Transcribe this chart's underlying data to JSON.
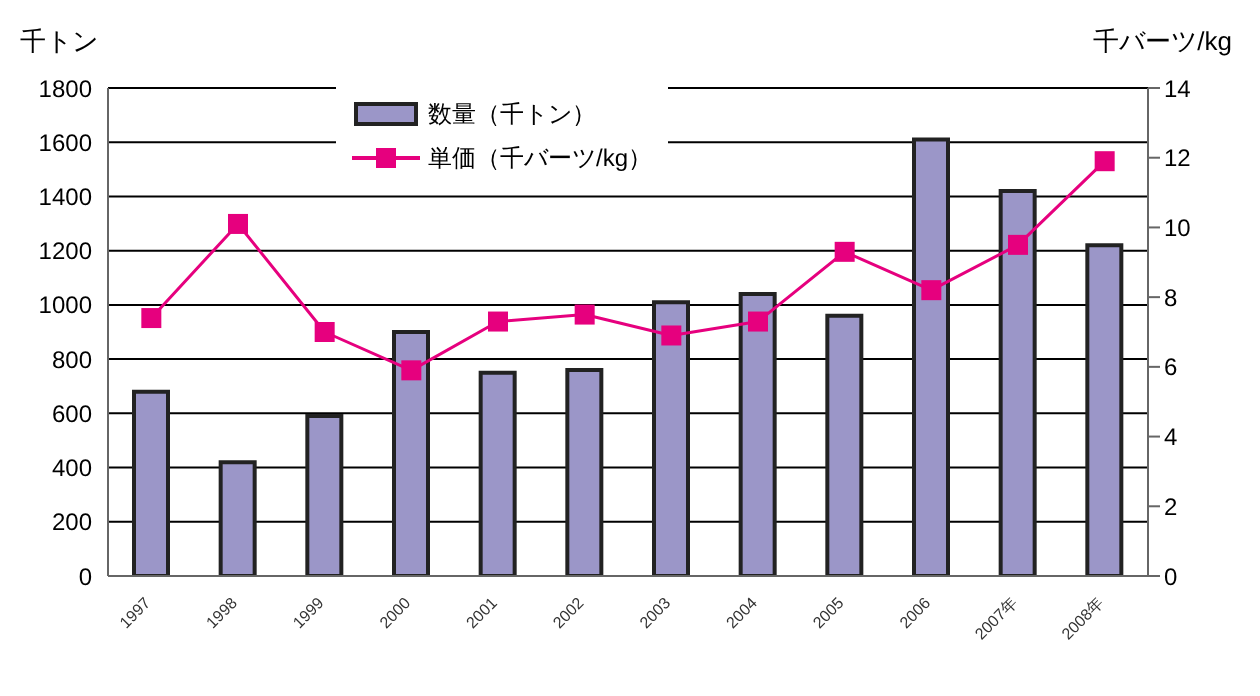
{
  "chart_data": {
    "type": "bar",
    "ylabel": "千トン",
    "y2label": "千バーツ/kg",
    "categories": [
      "1997",
      "1998",
      "1999",
      "2000",
      "2001",
      "2002",
      "2003",
      "2004",
      "2005",
      "2006",
      "2007年",
      "2008年"
    ],
    "series": [
      {
        "name": "数量（千トン）",
        "color": "#9b96c8",
        "values": [
          680,
          420,
          590,
          900,
          750,
          760,
          1010,
          1040,
          960,
          1610,
          1420,
          1220
        ]
      },
      {
        "name": "単価（千バーツ/kg）",
        "type": "line",
        "axis": "y2",
        "color": "#e6007e",
        "values": [
          7.4,
          10.1,
          7.0,
          5.9,
          7.3,
          7.5,
          6.9,
          7.3,
          9.3,
          8.2,
          9.5,
          11.9
        ]
      }
    ],
    "ylim": [
      0,
      1800
    ],
    "yticks": [
      0,
      200,
      400,
      600,
      800,
      1000,
      1200,
      1400,
      1600,
      1800
    ],
    "y2lim": [
      0,
      14
    ],
    "y2ticks": [
      0,
      2,
      4,
      6,
      8,
      10,
      12,
      14
    ],
    "grid": "y",
    "legend": "top",
    "marker": "square",
    "line_style": "solid"
  }
}
